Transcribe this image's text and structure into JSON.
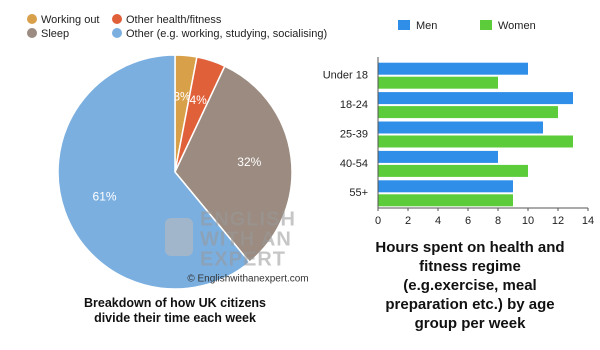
{
  "chart_data": [
    {
      "type": "pie",
      "title": "Breakdown of how UK citizens divide their time each week",
      "categories": [
        "Working out",
        "Other health/fitness",
        "Sleep",
        "Other (e.g. working, studying, socialising)"
      ],
      "values": [
        3,
        4,
        32,
        61
      ],
      "value_labels": [
        "3%",
        "4%",
        "32%",
        "61%"
      ],
      "colors": [
        "#d9a04a",
        "#e0603a",
        "#9b8b80",
        "#7bafe0"
      ],
      "legend": "top"
    },
    {
      "type": "bar",
      "orientation": "horizontal",
      "title": "Hours spent on health and fitness regime (e.g.exercise, meal preparation etc.) by age group per week",
      "categories": [
        "Under 18",
        "18-24",
        "25-39",
        "40-54",
        "55+"
      ],
      "series": [
        {
          "name": "Men",
          "color": "#2e8ee8",
          "values": [
            10,
            13,
            11,
            8,
            9
          ]
        },
        {
          "name": "Women",
          "color": "#5ccc3a",
          "values": [
            8,
            12,
            13,
            10,
            9
          ]
        }
      ],
      "xlim": [
        0,
        14
      ],
      "xticks": [
        0,
        2,
        4,
        6,
        8,
        10,
        12,
        14
      ],
      "legend": "top"
    }
  ],
  "watermark": {
    "logo": [
      "ENGLISH",
      "WITH AN",
      "EXPERT"
    ],
    "credit": "© Englishwithanexpert.com"
  }
}
